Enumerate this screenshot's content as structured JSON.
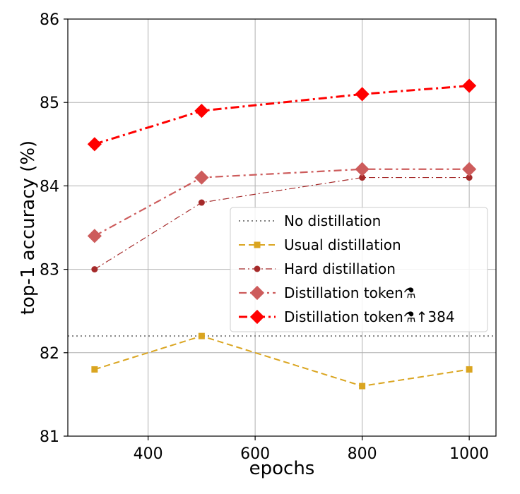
{
  "chart_data": {
    "type": "line",
    "xlabel": "epochs",
    "ylabel": "top-1 accuracy (%)",
    "xlim": [
      250,
      1050
    ],
    "ylim": [
      81,
      86
    ],
    "xticks": [
      400,
      600,
      800,
      1000
    ],
    "yticks": [
      81,
      82,
      83,
      84,
      85,
      86
    ],
    "grid": true,
    "legend_position": "center-right",
    "baseline": {
      "name": "No distillation",
      "y": 82.2,
      "color": "#808080",
      "style": "dotted"
    },
    "series": [
      {
        "name": "Usual distillation",
        "x": [
          300,
          500,
          800,
          1000
        ],
        "values": [
          81.8,
          82.2,
          81.6,
          81.8
        ],
        "color": "#DAA520",
        "marker": "square",
        "style": "dashed"
      },
      {
        "name": "Hard distillation",
        "x": [
          300,
          500,
          800,
          1000
        ],
        "values": [
          83.0,
          83.8,
          84.1,
          84.1
        ],
        "color": "#A52A2A",
        "marker": "circle",
        "style": "dashdot-thin"
      },
      {
        "name": "Distillation token⚗",
        "x": [
          300,
          500,
          800,
          1000
        ],
        "values": [
          83.4,
          84.1,
          84.2,
          84.2
        ],
        "color": "#CD5C5C",
        "marker": "diamond",
        "style": "dashdot"
      },
      {
        "name": "Distillation token⚗↑384",
        "x": [
          300,
          500,
          800,
          1000
        ],
        "values": [
          84.5,
          84.9,
          85.1,
          85.2
        ],
        "color": "#FF0000",
        "marker": "diamond",
        "style": "dashdot-thick"
      }
    ]
  }
}
